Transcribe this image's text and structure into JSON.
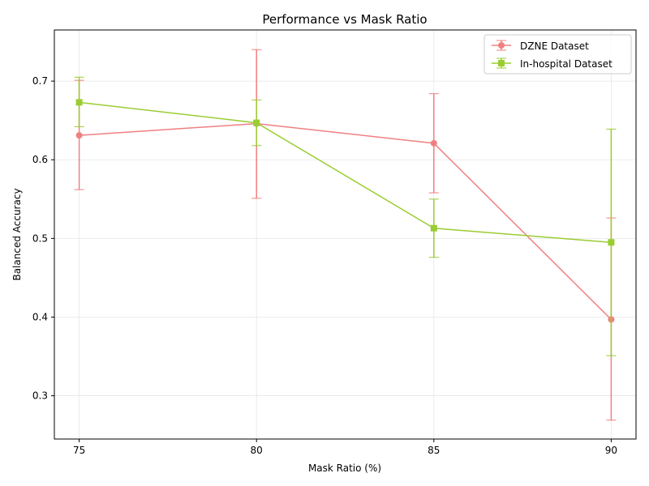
{
  "colors": {
    "dzne": "#f08080",
    "inhospital": "#9acd32",
    "grid": "#e6e6e6",
    "axis": "#000000"
  },
  "chart_data": {
    "type": "line",
    "title": "Performance vs Mask Ratio",
    "xlabel": "Mask Ratio (%)",
    "ylabel": "Balanced Accuracy",
    "x": [
      75,
      80,
      85,
      90
    ],
    "xlim": [
      74.3,
      90.7
    ],
    "ylim": [
      0.245,
      0.765
    ],
    "xticks": [
      "75",
      "80",
      "85",
      "90"
    ],
    "yticks": [
      "0.3",
      "0.4",
      "0.5",
      "0.6",
      "0.7"
    ],
    "grid": true,
    "legend_position": "top-right",
    "series": [
      {
        "name": "DZNE Dataset",
        "marker": "circle",
        "values": [
          0.631,
          0.646,
          0.621,
          0.397
        ],
        "err_low": [
          0.562,
          0.551,
          0.558,
          0.269
        ],
        "err_high": [
          0.701,
          0.74,
          0.684,
          0.526
        ]
      },
      {
        "name": "In-hospital Dataset",
        "marker": "square",
        "values": [
          0.673,
          0.647,
          0.513,
          0.495
        ],
        "err_low": [
          0.642,
          0.618,
          0.476,
          0.351
        ],
        "err_high": [
          0.705,
          0.676,
          0.55,
          0.639
        ]
      }
    ]
  }
}
